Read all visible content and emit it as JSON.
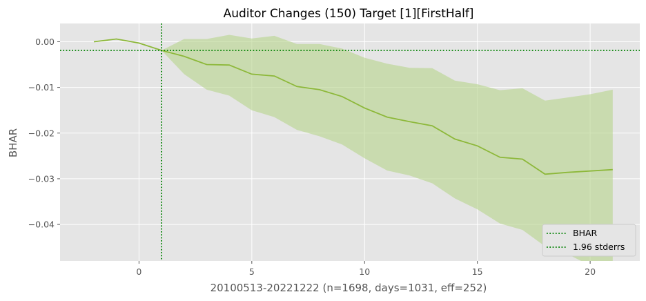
{
  "chart_data": {
    "type": "line",
    "title": "Auditor Changes (150) Target [1][FirstHalf]",
    "xlabel": "20100513-20221222 (n=1698, days=1031, eff=252)",
    "ylabel": "BHAR",
    "xlim": [
      -3.5,
      22.2
    ],
    "ylim": [
      -0.048,
      0.004
    ],
    "xticks": [
      0,
      5,
      10,
      15,
      20
    ],
    "xtick_labels": [
      "0",
      "5",
      "10",
      "15",
      "20"
    ],
    "yticks": [
      0.0,
      -0.01,
      -0.02,
      -0.03,
      -0.04
    ],
    "ytick_labels": [
      "0.00",
      "−0.01",
      "−0.02",
      "−0.03",
      "−0.04"
    ],
    "grid": true,
    "legend_position": "bottom-right",
    "legend": [
      {
        "label": "BHAR",
        "color": "#008000",
        "style": "dotted"
      },
      {
        "label": "1.96 stderrs",
        "color": "#008000",
        "style": "dotted"
      }
    ],
    "x": [
      -2,
      -1,
      0,
      1,
      2,
      3,
      4,
      5,
      6,
      7,
      8,
      9,
      10,
      11,
      12,
      13,
      14,
      15,
      16,
      17,
      18,
      19,
      20,
      21
    ],
    "series": [
      {
        "values": [
          0.0,
          0.0006,
          -0.0003,
          -0.0019,
          -0.0032,
          -0.005,
          -0.0051,
          -0.0071,
          -0.0075,
          -0.0098,
          -0.0105,
          -0.012,
          -0.0145,
          -0.0165,
          -0.0175,
          -0.0184,
          -0.0213,
          -0.0228,
          -0.0253,
          -0.0257,
          -0.029,
          -0.0286,
          -0.0283,
          -0.028
        ],
        "color": "#8db83a"
      }
    ],
    "band": {
      "x_start": 1,
      "upper": [
        -0.0019,
        0.0006,
        0.0006,
        0.0015,
        0.0007,
        0.0013,
        -0.0005,
        -0.0005,
        -0.0015,
        -0.0035,
        -0.0048,
        -0.0057,
        -0.0058,
        -0.0085,
        -0.0093,
        -0.0106,
        -0.0102,
        -0.0129,
        -0.0122,
        -0.0115,
        -0.0105
      ],
      "lower": [
        -0.0019,
        -0.0071,
        -0.0105,
        -0.0118,
        -0.015,
        -0.0165,
        -0.0193,
        -0.0207,
        -0.0225,
        -0.0255,
        -0.0282,
        -0.0293,
        -0.031,
        -0.0343,
        -0.0367,
        -0.0398,
        -0.0412,
        -0.0448,
        -0.0465,
        -0.049,
        -0.0505
      ],
      "color": "#b5d38a"
    },
    "reference_lines": [
      {
        "axis": "x",
        "value": 1,
        "color": "#008000",
        "style": "dotted"
      },
      {
        "axis": "y",
        "value": -0.0019,
        "color": "#008000",
        "style": "dotted"
      }
    ],
    "colors": {
      "plot_background": "#e5e5e5",
      "grid": "#ffffff"
    }
  }
}
